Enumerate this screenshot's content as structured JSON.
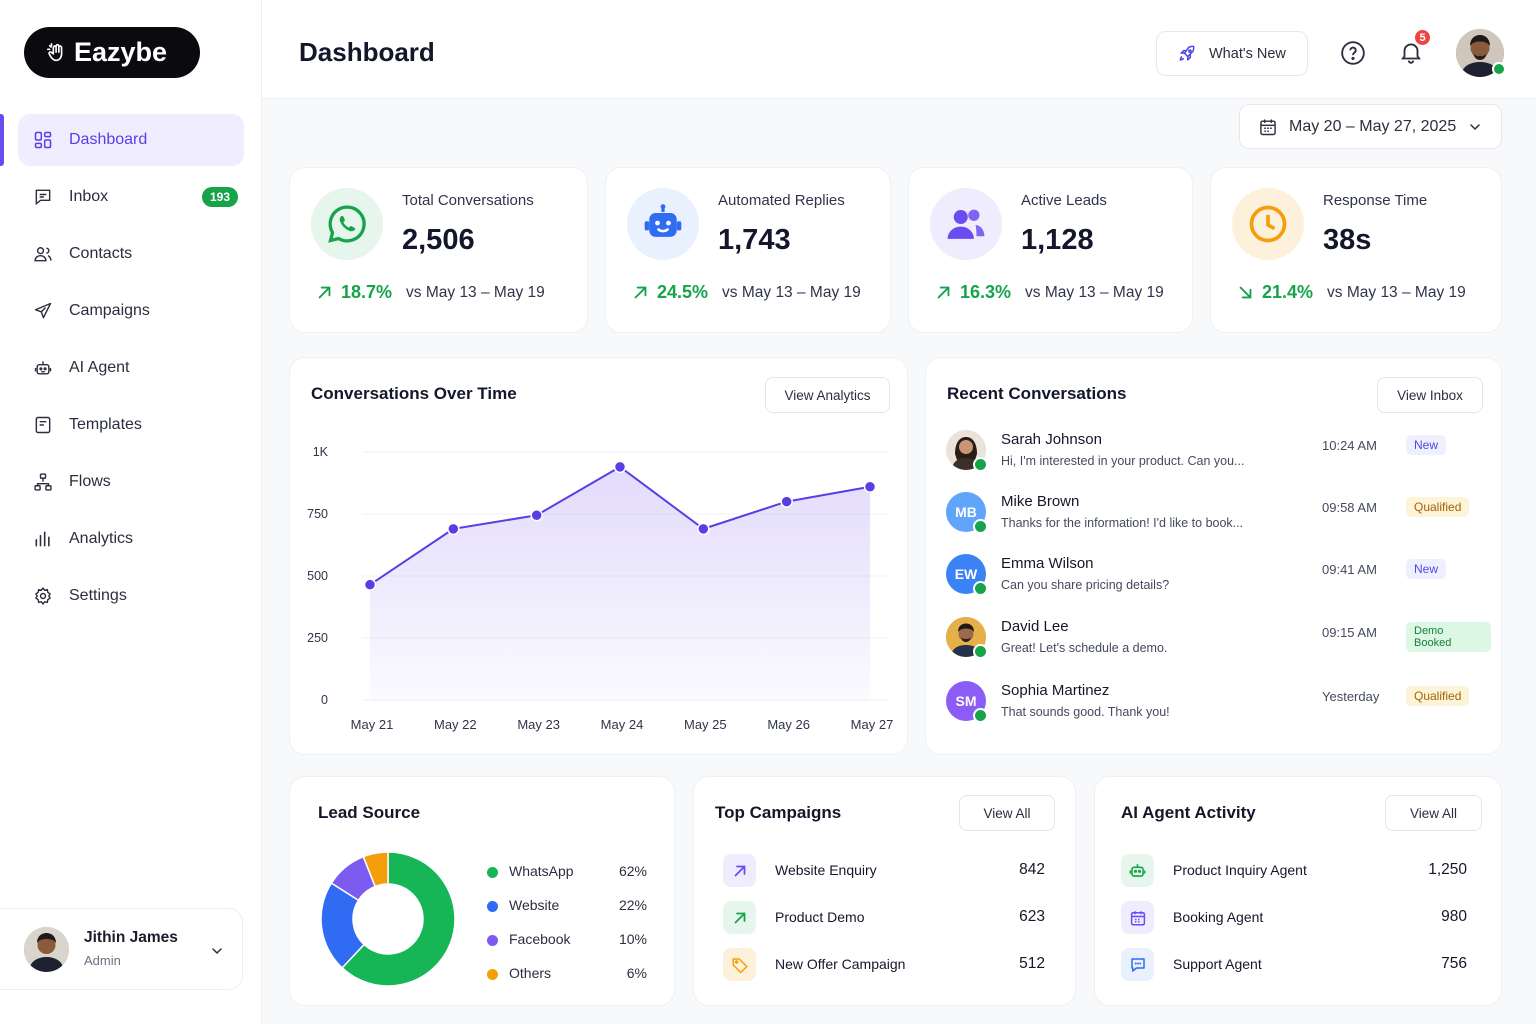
{
  "brand": {
    "name": "Eazybe"
  },
  "sidebar": {
    "items": [
      {
        "label": "Dashboard",
        "icon": "grid-icon",
        "active": true
      },
      {
        "label": "Inbox",
        "icon": "inbox-icon",
        "badge": "193"
      },
      {
        "label": "Contacts",
        "icon": "contacts-icon"
      },
      {
        "label": "Campaigns",
        "icon": "send-icon"
      },
      {
        "label": "AI Agent",
        "icon": "robot-icon"
      },
      {
        "label": "Templates",
        "icon": "template-icon"
      },
      {
        "label": "Flows",
        "icon": "flow-icon"
      },
      {
        "label": "Analytics",
        "icon": "bar-chart-icon"
      },
      {
        "label": "Settings",
        "icon": "gear-icon"
      }
    ],
    "user": {
      "name": "Jithin James",
      "role": "Admin"
    }
  },
  "header": {
    "title": "Dashboard",
    "whats_new": "What's New",
    "notifications": "5",
    "date_range": "May 20 – May 27, 2025"
  },
  "stats": [
    {
      "label": "Total Conversations",
      "value": "2,506",
      "delta": "18.7%",
      "direction": "up",
      "compare": "vs May 13 – May 19",
      "color": "#16a34a"
    },
    {
      "label": "Automated Replies",
      "value": "1,743",
      "delta": "24.5%",
      "direction": "up",
      "compare": "vs May 13 – May 19",
      "color": "#3b6cf6"
    },
    {
      "label": "Active Leads",
      "value": "1,128",
      "delta": "16.3%",
      "direction": "up",
      "compare": "vs May 13 – May 19",
      "color": "#6a4cf0"
    },
    {
      "label": "Response Time",
      "value": "38s",
      "delta": "21.4%",
      "direction": "down",
      "compare": "vs May 13 – May 19",
      "color": "#f59e0b"
    }
  ],
  "conversations_chart": {
    "title": "Conversations Over Time",
    "button": "View Analytics"
  },
  "chart_data": {
    "type": "area",
    "x": [
      "May 21",
      "May 22",
      "May 23",
      "May 24",
      "May 25",
      "May 26",
      "May 27"
    ],
    "values": [
      465,
      690,
      745,
      940,
      690,
      800,
      860
    ],
    "yticks": [
      "0",
      "250",
      "500",
      "750",
      "1K"
    ],
    "ylim": [
      0,
      1000
    ],
    "color": "#5b3de5",
    "grid": true
  },
  "recent": {
    "title": "Recent Conversations",
    "button": "View Inbox",
    "items": [
      {
        "name": "Sarah Johnson",
        "message": "Hi, I'm interested in your product. Can you...",
        "time": "10:24 AM",
        "tag": "New",
        "tag_type": "new",
        "initials": "",
        "color": "#c9a88a"
      },
      {
        "name": "Mike Brown",
        "message": "Thanks for the information! I'd like to book...",
        "time": "09:58 AM",
        "tag": "Qualified",
        "tag_type": "qual",
        "initials": "MB",
        "color": "#60a5fa"
      },
      {
        "name": "Emma Wilson",
        "message": "Can you share pricing details?",
        "time": "09:41 AM",
        "tag": "New",
        "tag_type": "new",
        "initials": "EW",
        "color": "#3b82f6"
      },
      {
        "name": "David Lee",
        "message": "Great! Let's schedule a demo.",
        "time": "09:15 AM",
        "tag": "Demo Booked",
        "tag_type": "demo",
        "initials": "",
        "color": "#d4a24a"
      },
      {
        "name": "Sophia Martinez",
        "message": "That sounds good. Thank you!",
        "time": "Yesterday",
        "tag": "Qualified",
        "tag_type": "qual",
        "initials": "SM",
        "color": "#8b5cf6"
      }
    ]
  },
  "lead_source": {
    "title": "Lead Source",
    "items": [
      {
        "label": "WhatsApp",
        "pct": "62%",
        "value": 62,
        "color": "#16b657"
      },
      {
        "label": "Website",
        "pct": "22%",
        "value": 22,
        "color": "#2f6bf3"
      },
      {
        "label": "Facebook",
        "pct": "10%",
        "value": 10,
        "color": "#7c5cf0"
      },
      {
        "label": "Others",
        "pct": "6%",
        "value": 6,
        "color": "#f59e0b"
      }
    ]
  },
  "campaigns": {
    "title": "Top Campaigns",
    "button": "View All",
    "items": [
      {
        "label": "Website Enquiry",
        "value": "842",
        "icon": "arrow-up-right-icon"
      },
      {
        "label": "Product Demo",
        "value": "623",
        "icon": "arrow-up-right-icon"
      },
      {
        "label": "New Offer Campaign",
        "value": "512",
        "icon": "tag-icon"
      }
    ]
  },
  "agents": {
    "title": "AI Agent Activity",
    "button": "View All",
    "items": [
      {
        "label": "Product Inquiry Agent",
        "value": "1,250",
        "icon": "robot-icon"
      },
      {
        "label": "Booking Agent",
        "value": "980",
        "icon": "calendar-icon"
      },
      {
        "label": "Support Agent",
        "value": "756",
        "icon": "chat-icon"
      }
    ]
  }
}
